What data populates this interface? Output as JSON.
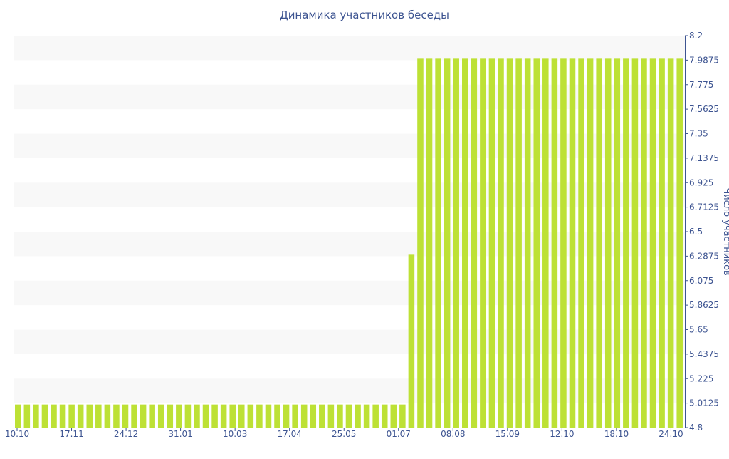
{
  "chart_data": {
    "type": "bar",
    "title": "Динамика участников беседы",
    "xlabel": "",
    "ylabel": "Число участников",
    "ylim": [
      4.8,
      8.2
    ],
    "yticks": [
      "8.2",
      "7.9875",
      "7.775",
      "7.5625",
      "7.35",
      "7.1375",
      "6.925",
      "6.7125",
      "6.5",
      "6.2875",
      "6.075",
      "5.8625",
      "5.65",
      "5.4375",
      "5.225",
      "5.0125",
      "4.8"
    ],
    "xticks": [
      "10.10",
      "17.11",
      "24.12",
      "31.01",
      "10.03",
      "17.04",
      "25.05",
      "01.07",
      "08.08",
      "15.09",
      "12.10",
      "18.10",
      "24.10"
    ],
    "bar_count": 75,
    "values": [
      5,
      5,
      5,
      5,
      5,
      5,
      5,
      5,
      5,
      5,
      5,
      5,
      5,
      5,
      5,
      5,
      5,
      5,
      5,
      5,
      5,
      5,
      5,
      5,
      5,
      5,
      5,
      5,
      5,
      5,
      5,
      5,
      5,
      5,
      5,
      5,
      5,
      5,
      5,
      5,
      5,
      5,
      5,
      5,
      6.3,
      8,
      8,
      8,
      8,
      8,
      8,
      8,
      8,
      8,
      8,
      8,
      8,
      8,
      8,
      8,
      8,
      8,
      8,
      8,
      8,
      8,
      8,
      8,
      8,
      8,
      8,
      8,
      8,
      8,
      8
    ],
    "grid": "alternating horizontal bands",
    "legend": "none",
    "y_axis_position": "right",
    "colors": {
      "bar": "#bde135",
      "band": "#f8f8f8",
      "axis": "#3d5491",
      "text": "#3d5491"
    }
  }
}
